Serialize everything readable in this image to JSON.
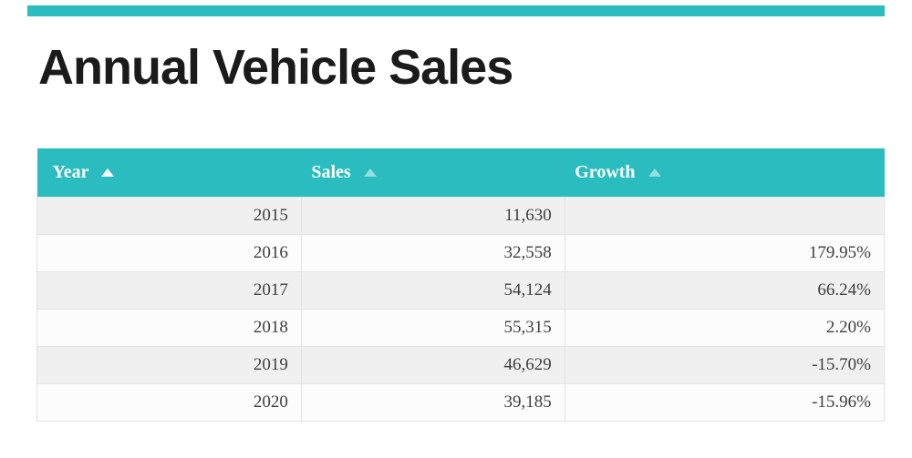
{
  "page": {
    "title": "Annual Vehicle Sales"
  },
  "theme": {
    "accent_teal": "#2abcbe",
    "header_text_color": "#ffffff",
    "row_alt_gray": "#f0f0f0",
    "row_white": "#fcfcfc",
    "border_gray": "#e3e3e3",
    "cell_text_color": "#3e3e3e",
    "title_color": "#1b1b1b"
  },
  "table": {
    "columns": [
      {
        "label": "Year",
        "sort_icon": "sort-asc-icon",
        "sort_active": true
      },
      {
        "label": "Sales",
        "sort_icon": "sort-asc-icon",
        "sort_active": false
      },
      {
        "label": "Growth",
        "sort_icon": "sort-asc-icon",
        "sort_active": false
      }
    ],
    "rows": [
      {
        "year": "2015",
        "sales": "11,630",
        "growth": ""
      },
      {
        "year": "2016",
        "sales": "32,558",
        "growth": "179.95%"
      },
      {
        "year": "2017",
        "sales": "54,124",
        "growth": "66.24%"
      },
      {
        "year": "2018",
        "sales": "55,315",
        "growth": "2.20%"
      },
      {
        "year": "2019",
        "sales": "46,629",
        "growth": "-15.70%"
      },
      {
        "year": "2020",
        "sales": "39,185",
        "growth": "-15.96%"
      }
    ]
  }
}
